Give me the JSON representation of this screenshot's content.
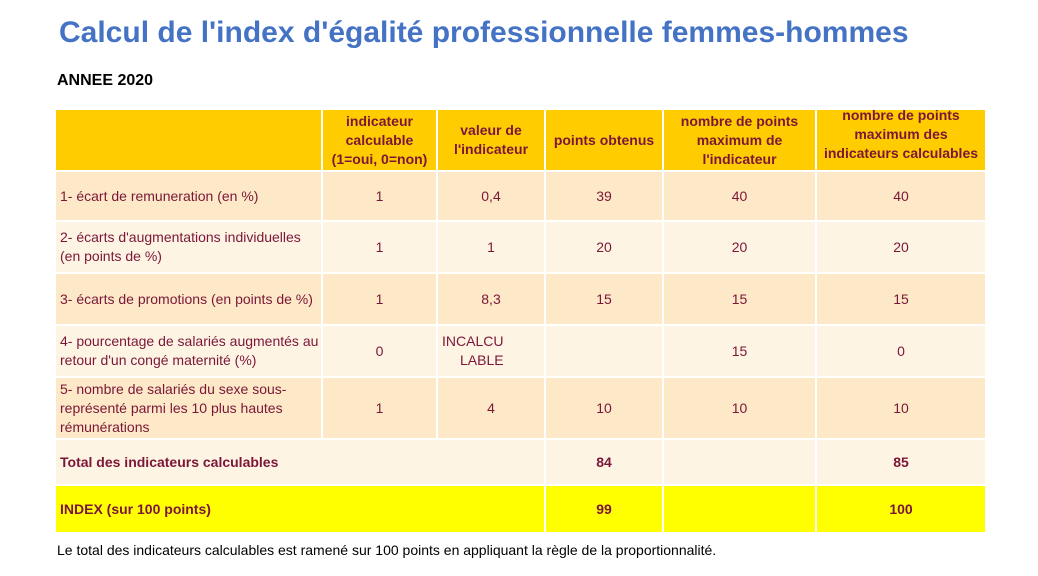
{
  "title": "Calcul de l'index d'égalité professionnelle femmes-hommes",
  "year_label": "ANNEE 2020",
  "headers": {
    "label": "",
    "calculable": "indicateur calculable (1=oui, 0=non)",
    "value": "valeur de l'indicateur",
    "points": "points obtenus",
    "max_points": "nombre de points maximum de l'indicateur",
    "max_points_calc": "nombre de points maximum des indicateurs calculables"
  },
  "rows": [
    {
      "label": "1- écart de remuneration (en %)",
      "calculable": "1",
      "value": "0,4",
      "points": "39",
      "max_points": "40",
      "max_points_calc": "40"
    },
    {
      "label": "2- écarts d'augmentations individuelles (en points de %)",
      "calculable": "1",
      "value": "1",
      "points": "20",
      "max_points": "20",
      "max_points_calc": "20"
    },
    {
      "label": "3- écarts de promotions (en points de %)",
      "calculable": "1",
      "value": "8,3",
      "points": "15",
      "max_points": "15",
      "max_points_calc": "15"
    },
    {
      "label": "4- pourcentage de salariés augmentés au retour d'un congé maternité (%)",
      "calculable": "0",
      "value_line1": "INCALCU",
      "value_line2": "LABLE",
      "points": "",
      "max_points": "15",
      "max_points_calc": "0"
    },
    {
      "label": "5- nombre de salariés du sexe sous-représenté parmi les 10 plus hautes rémunérations",
      "calculable": "1",
      "value": "4",
      "points": "10",
      "max_points": "10",
      "max_points_calc": "10"
    }
  ],
  "total": {
    "label": "Total des indicateurs calculables",
    "points": "84",
    "max_points_calc": "85"
  },
  "index": {
    "label": "INDEX (sur 100 points)",
    "points": "99",
    "max_points_calc": "100"
  },
  "footnote": "Le total des indicateurs calculables est ramené sur 100 points en appliquant la règle de la proportionnalité.",
  "colors": {
    "title": "#4472c4",
    "header_bg": "#ffcc00",
    "row_dark": "#fde9c7",
    "row_light": "#fef4e3",
    "index_bg": "#ffff00",
    "text": "#7b1639"
  }
}
